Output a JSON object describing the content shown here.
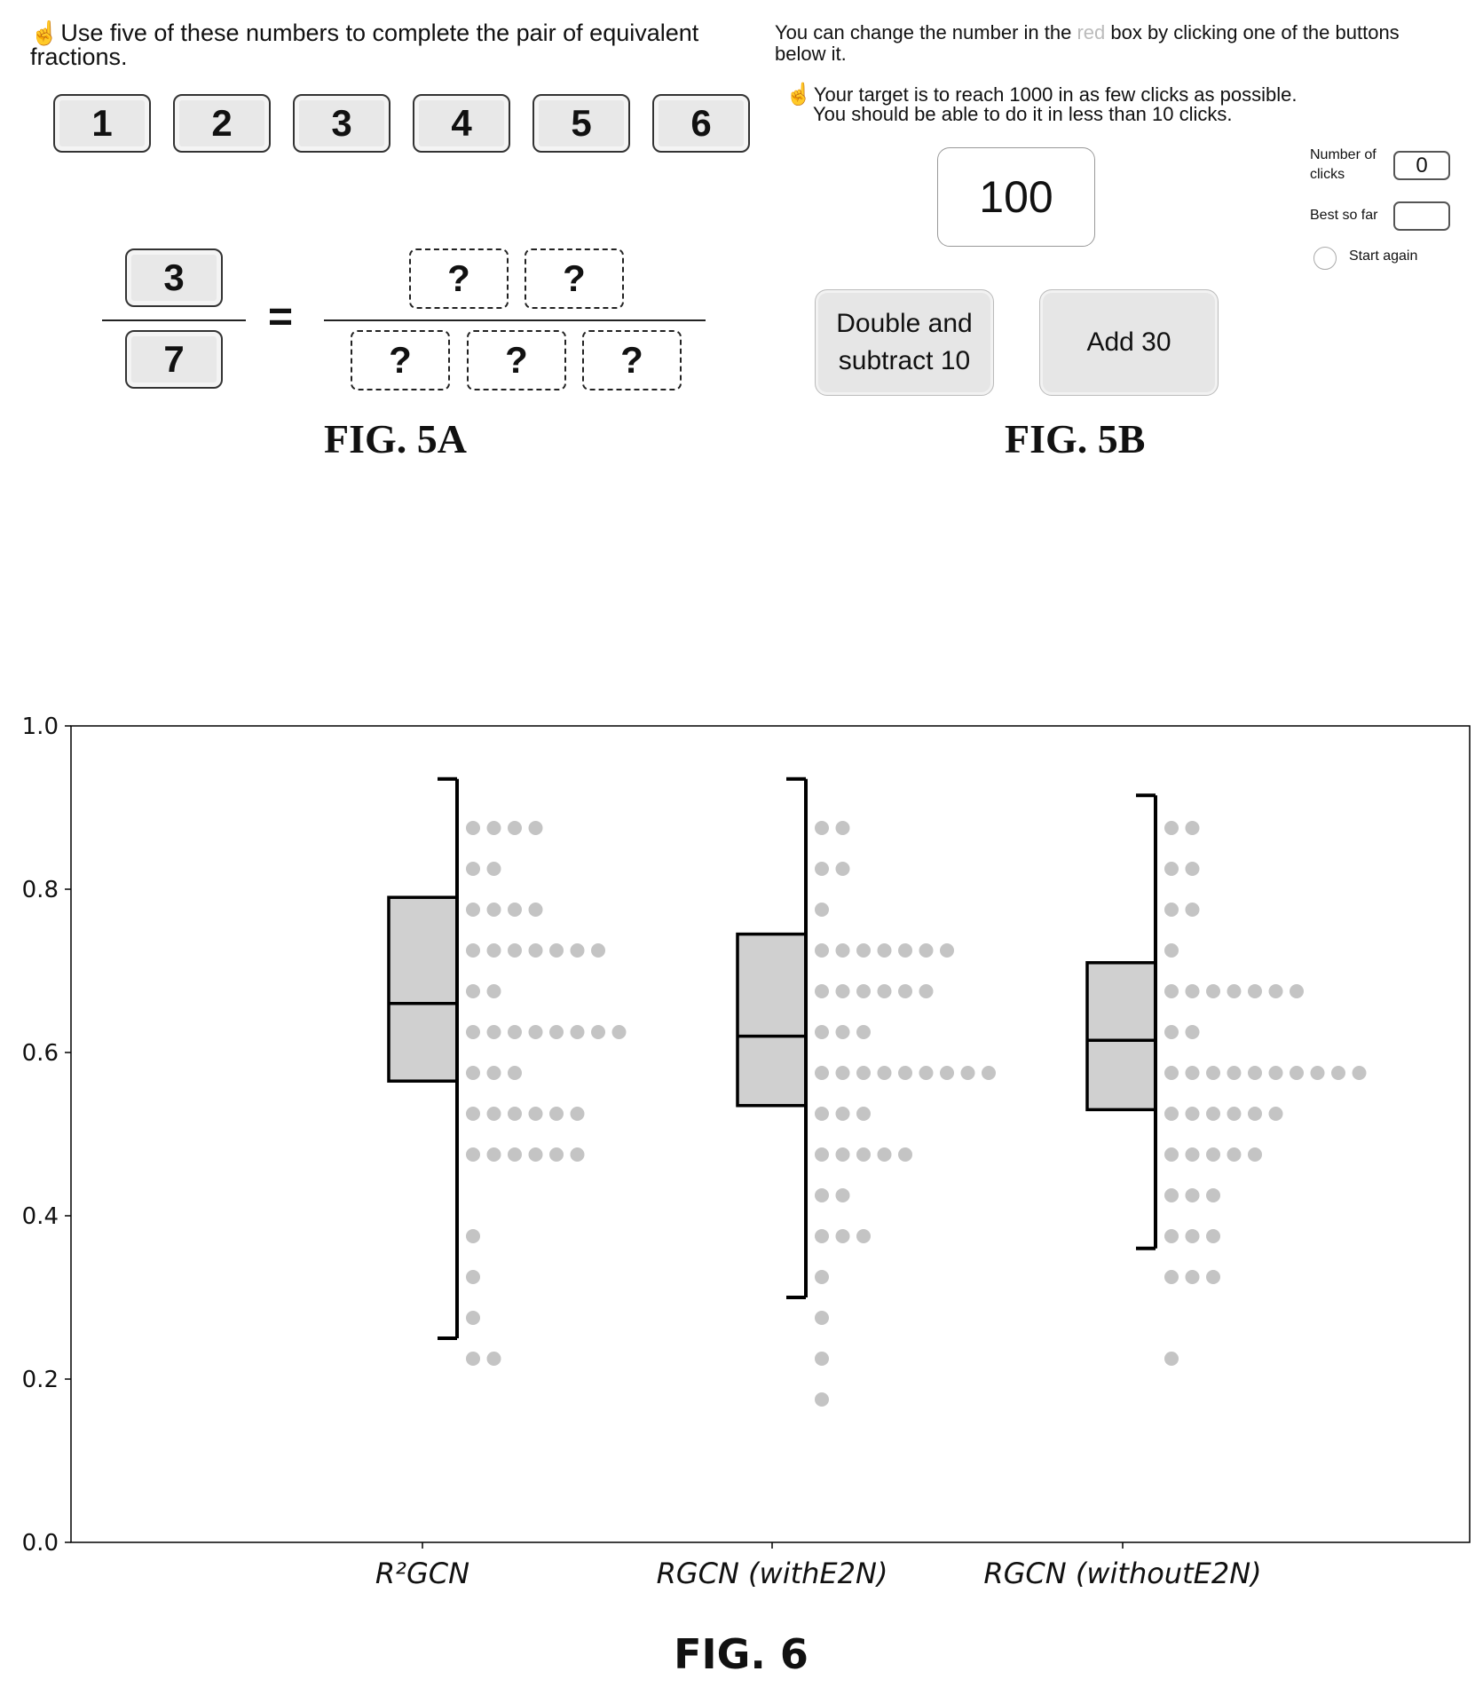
{
  "fig5a": {
    "instruction": "Use five of these numbers to complete the pair of equivalent fractions.",
    "number_tiles": [
      "1",
      "2",
      "3",
      "4",
      "5",
      "6"
    ],
    "left_fraction": {
      "numerator": "3",
      "denominator": "7"
    },
    "equals": "=",
    "right_fraction": {
      "numerator_slots": [
        "?",
        "?"
      ],
      "denominator_slots": [
        "?",
        "?",
        "?"
      ]
    },
    "label": "FIG. 5A"
  },
  "fig5b": {
    "intro_part1": "You can change the number in the ",
    "intro_red_word": "red",
    "intro_part2": " box by clicking one of the buttons below it.",
    "target_line1": "Your target is to reach 1000 in as few clicks as possible.",
    "target_line2": "You should be able to do it in less than 10 clicks.",
    "current_value": "100",
    "buttons": {
      "double_subtract": "Double and subtract 10",
      "add": "Add 30"
    },
    "clicks_label": "Number of clicks",
    "clicks_value": "0",
    "best_label": "Best so far",
    "best_value": "",
    "start_again": "Start again",
    "label": "FIG. 5B"
  },
  "chart_data": {
    "type": "box",
    "ylim": [
      0,
      1.0
    ],
    "yticks": [
      "0.0",
      "0.2",
      "0.4",
      "0.6",
      "0.8",
      "1.0"
    ],
    "categories": [
      "R²GCN",
      "RGCN (withE2N)",
      "RGCN (withoutE2N)"
    ],
    "boxes": [
      {
        "whisker_low": 0.25,
        "q1": 0.565,
        "median": 0.66,
        "q3": 0.79,
        "whisker_high": 0.935
      },
      {
        "whisker_low": 0.3,
        "q1": 0.535,
        "median": 0.62,
        "q3": 0.745,
        "whisker_high": 0.935
      },
      {
        "whisker_low": 0.36,
        "q1": 0.53,
        "median": 0.615,
        "q3": 0.71,
        "whisker_high": 0.915
      }
    ],
    "dot_histograms": [
      [
        [
          0.875,
          4
        ],
        [
          0.825,
          2
        ],
        [
          0.775,
          4
        ],
        [
          0.725,
          7
        ],
        [
          0.675,
          2
        ],
        [
          0.625,
          8
        ],
        [
          0.575,
          3
        ],
        [
          0.525,
          6
        ],
        [
          0.475,
          6
        ],
        [
          0.375,
          1
        ],
        [
          0.325,
          1
        ],
        [
          0.275,
          1
        ],
        [
          0.225,
          2
        ]
      ],
      [
        [
          0.875,
          2
        ],
        [
          0.825,
          2
        ],
        [
          0.775,
          1
        ],
        [
          0.725,
          7
        ],
        [
          0.675,
          6
        ],
        [
          0.625,
          3
        ],
        [
          0.575,
          9
        ],
        [
          0.525,
          3
        ],
        [
          0.475,
          5
        ],
        [
          0.425,
          2
        ],
        [
          0.375,
          3
        ],
        [
          0.325,
          1
        ],
        [
          0.275,
          1
        ],
        [
          0.225,
          1
        ],
        [
          0.175,
          1
        ]
      ],
      [
        [
          0.875,
          2
        ],
        [
          0.825,
          2
        ],
        [
          0.775,
          2
        ],
        [
          0.725,
          1
        ],
        [
          0.675,
          7
        ],
        [
          0.625,
          2
        ],
        [
          0.575,
          10
        ],
        [
          0.525,
          6
        ],
        [
          0.475,
          5
        ],
        [
          0.425,
          3
        ],
        [
          0.375,
          3
        ],
        [
          0.325,
          3
        ],
        [
          0.225,
          1
        ]
      ]
    ],
    "label": "FIG. 6"
  }
}
